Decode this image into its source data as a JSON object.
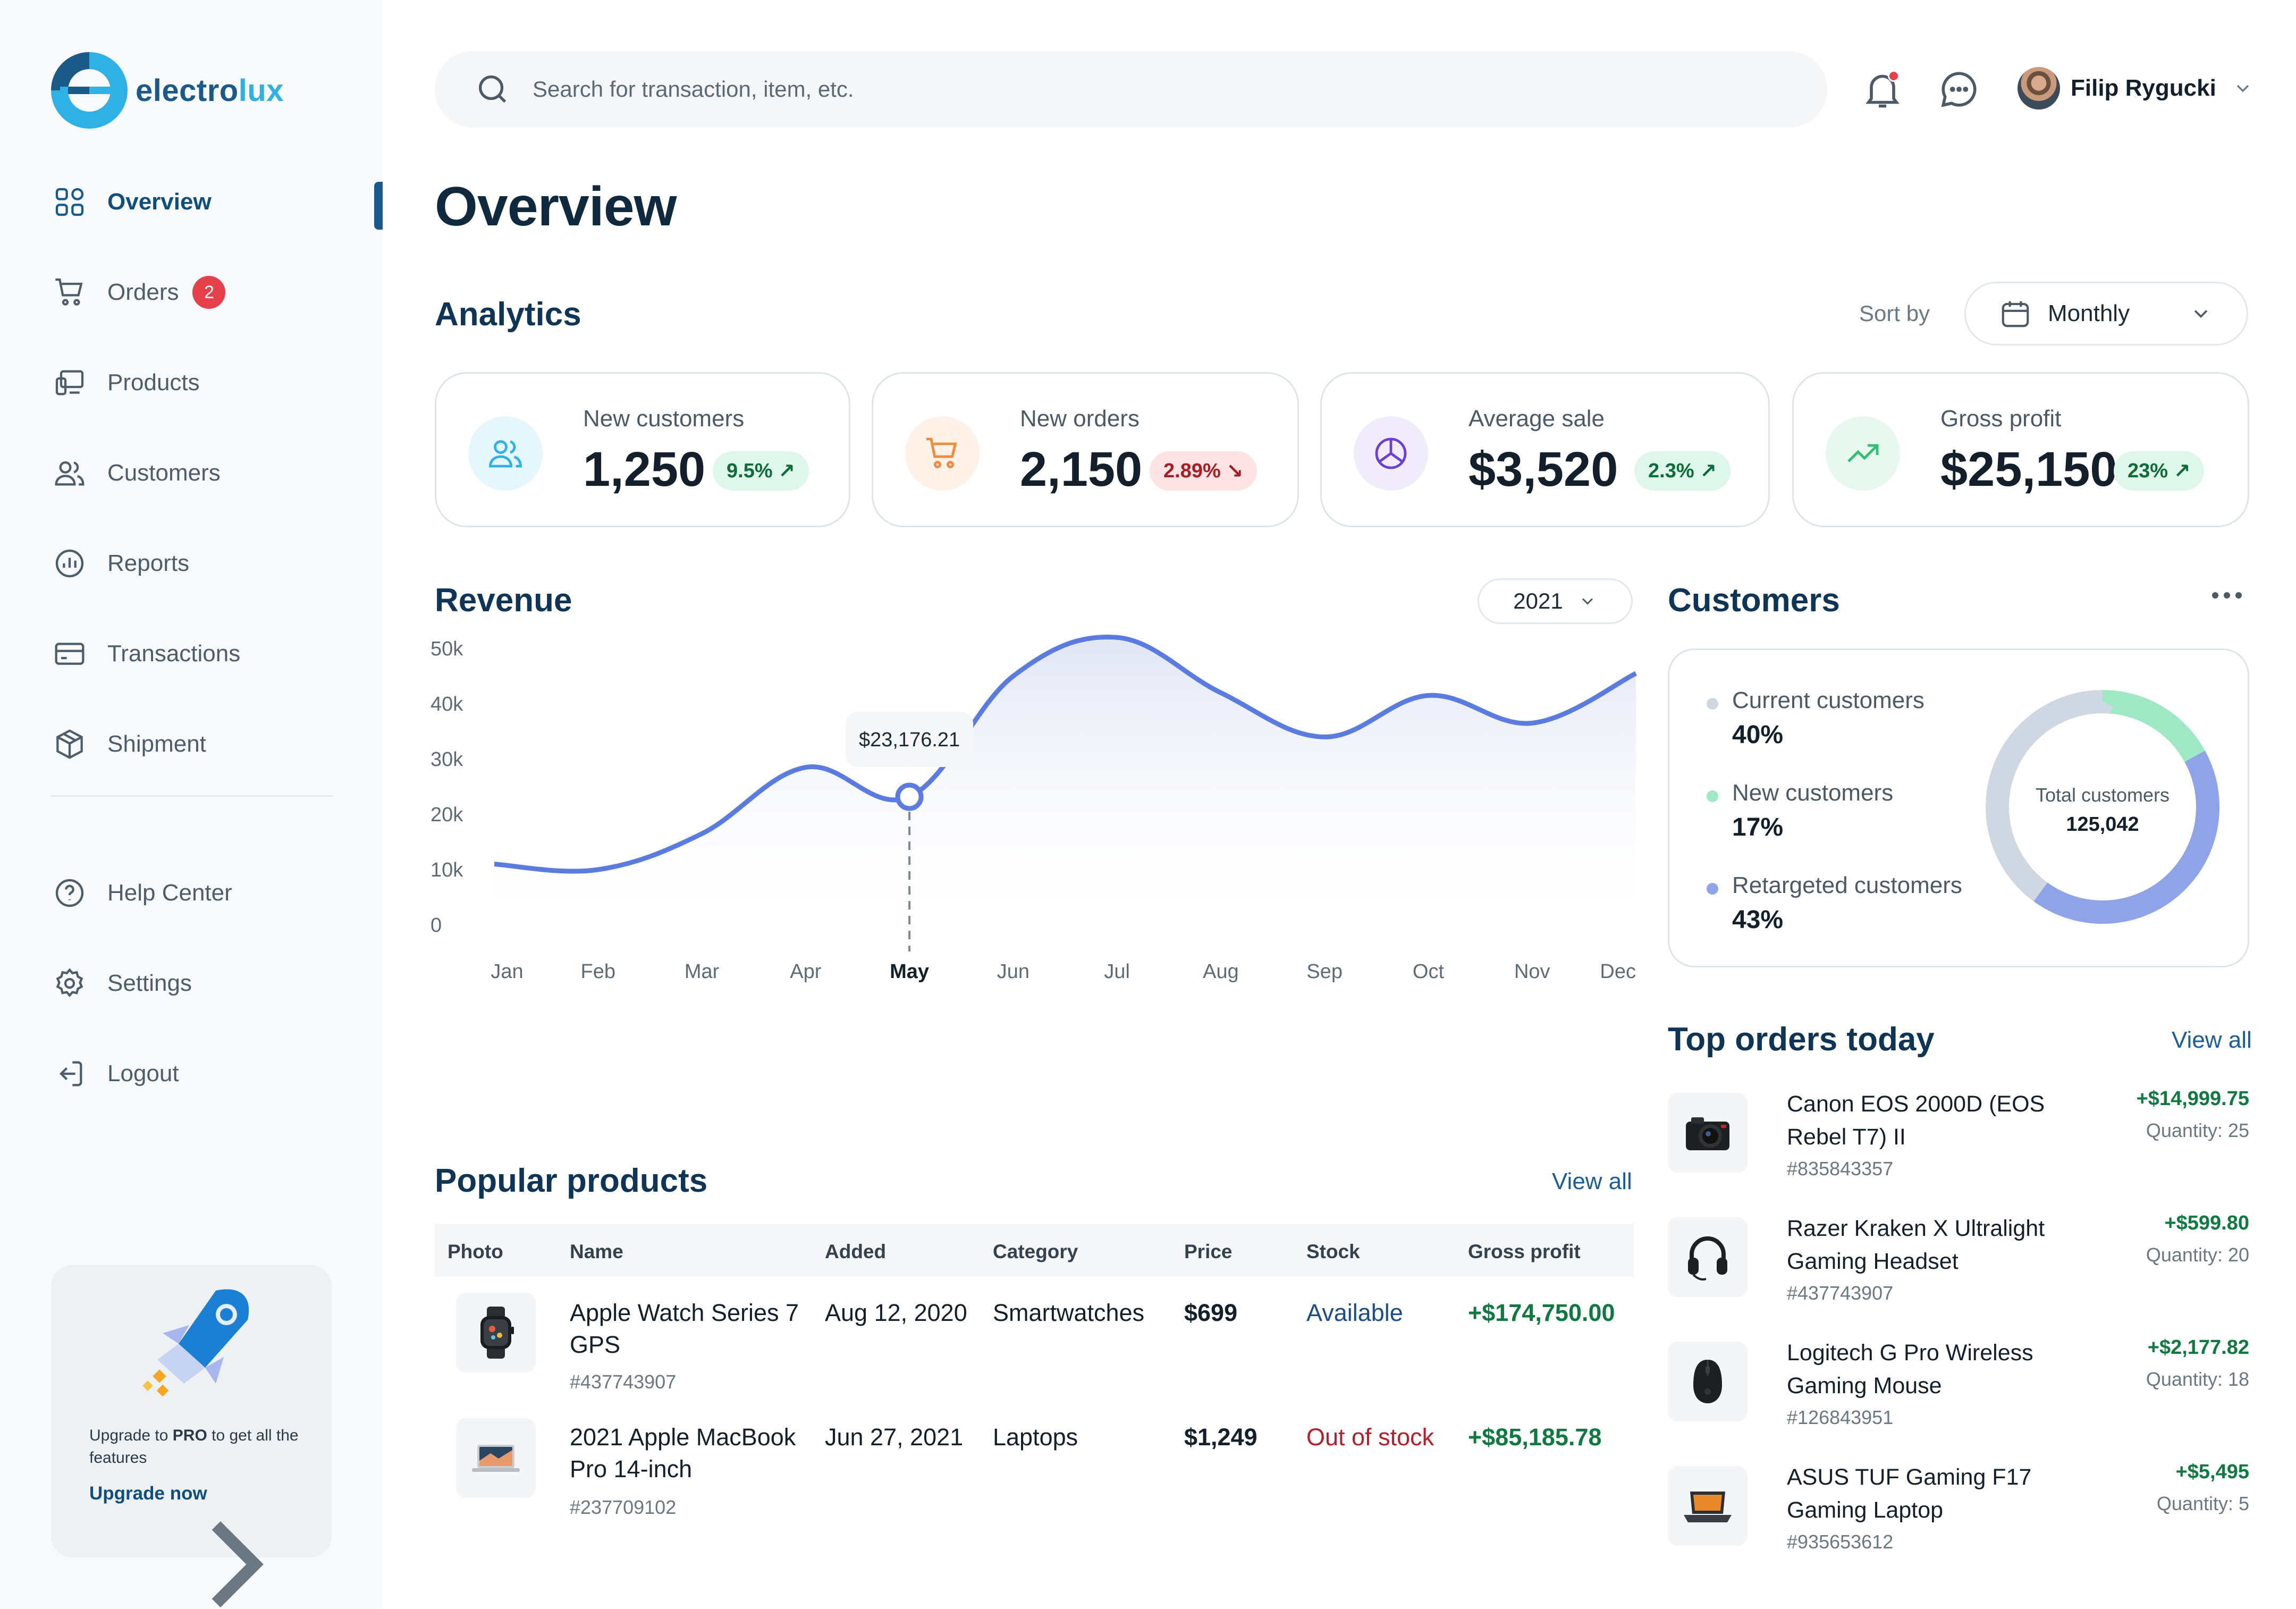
{
  "brand": {
    "name_part1": "electro",
    "name_part2": "lux"
  },
  "sidebar": {
    "items": [
      {
        "label": "Overview",
        "icon": "grid-icon"
      },
      {
        "label": "Orders",
        "icon": "cart-icon",
        "badge": "2"
      },
      {
        "label": "Products",
        "icon": "devices-icon"
      },
      {
        "label": "Customers",
        "icon": "users-icon"
      },
      {
        "label": "Reports",
        "icon": "report-icon"
      },
      {
        "label": "Transactions",
        "icon": "card-icon"
      },
      {
        "label": "Shipment",
        "icon": "box-icon"
      }
    ],
    "secondary": [
      {
        "label": "Help Center",
        "icon": "help-icon"
      },
      {
        "label": "Settings",
        "icon": "gear-icon"
      },
      {
        "label": "Logout",
        "icon": "logout-icon"
      }
    ],
    "upgrade": {
      "text_pre": "Upgrade to ",
      "text_bold": "PRO",
      "text_post": " to get all the features",
      "cta": "Upgrade now"
    }
  },
  "topbar": {
    "search_placeholder": "Search for transaction, item, etc.",
    "user_name": "Filip Rygucki"
  },
  "page": {
    "title": "Overview"
  },
  "analytics": {
    "title": "Analytics",
    "sort_label": "Sort by",
    "sort_value": "Monthly",
    "kpis": [
      {
        "label": "New customers",
        "value": "1,250",
        "change": "9.5%",
        "trend": "up",
        "icon": "users-icon",
        "color": "#2fb1e5"
      },
      {
        "label": "New orders",
        "value": "2,150",
        "change": "2.89%",
        "trend": "down",
        "icon": "cart-icon",
        "color": "#f08a3c"
      },
      {
        "label": "Average sale",
        "value": "$3,520",
        "change": "2.3%",
        "trend": "up",
        "icon": "pie-icon",
        "color": "#6a3fd6"
      },
      {
        "label": "Gross profit",
        "value": "$25,150",
        "change": "23%",
        "trend": "up",
        "icon": "trend-up-icon",
        "color": "#2fbf71"
      }
    ]
  },
  "revenue": {
    "title": "Revenue",
    "year": "2021",
    "tooltip": "$23,176.21"
  },
  "chart_data": {
    "type": "area",
    "title": "Revenue",
    "categories": [
      "Jan",
      "Feb",
      "Mar",
      "Apr",
      "May",
      "Jun",
      "Jul",
      "Aug",
      "Sep",
      "Oct",
      "Nov",
      "Dec"
    ],
    "y_ticks": [
      "50k",
      "40k",
      "30k",
      "20k",
      "10k",
      "0"
    ],
    "ylim": [
      0,
      50000
    ],
    "series": [
      {
        "values": [
          11000,
          10000,
          16500,
          28500,
          23176.21,
          45000,
          52000,
          42000,
          34000,
          41500,
          36500,
          45500
        ]
      }
    ],
    "highlight_index": 4,
    "line_color": "#5a7be0",
    "grid": false
  },
  "customers": {
    "title": "Customers",
    "total_label": "Total customers",
    "total_value": "125,042",
    "segments": [
      {
        "label": "Current customers",
        "percent": "40%",
        "value": 40,
        "color": "#cfd8e2"
      },
      {
        "label": "New customers",
        "percent": "17%",
        "value": 17,
        "color": "#9ee8c6"
      },
      {
        "label": "Retargeted customers",
        "percent": "43%",
        "value": 43,
        "color": "#8fa4e8"
      }
    ]
  },
  "popular": {
    "title": "Popular products",
    "view_all": "View all",
    "columns": [
      "Photo",
      "Name",
      "Added",
      "Category",
      "Price",
      "Stock",
      "Gross profit"
    ],
    "rows": [
      {
        "name": "Apple Watch Series 7 GPS",
        "sku": "#437743907",
        "added": "Aug 12, 2020",
        "category": "Smartwatches",
        "price": "$699",
        "stock": "Available",
        "profit": "+$174,750.00",
        "icon": "watch-icon"
      },
      {
        "name": "2021 Apple MacBook Pro 14-inch",
        "sku": "#237709102",
        "added": "Jun 27, 2021",
        "category": "Laptops",
        "price": "$1,249",
        "stock": "Out of stock",
        "profit": "+$85,185.78",
        "icon": "laptop-icon"
      }
    ]
  },
  "top_orders": {
    "title": "Top orders today",
    "view_all": "View all",
    "items": [
      {
        "name": "Canon EOS 2000D (EOS Rebel T7) II",
        "sku": "#835843357",
        "price": "+$14,999.75",
        "qty": "Quantity: 25",
        "icon": "camera-icon"
      },
      {
        "name": "Razer Kraken X Ultralight Gaming Headset",
        "sku": "#437743907",
        "price": "+$599.80",
        "qty": "Quantity: 20",
        "icon": "headset-icon"
      },
      {
        "name": "Logitech G Pro Wireless Gaming Mouse",
        "sku": "#126843951",
        "price": "+$2,177.82",
        "qty": "Quantity: 18",
        "icon": "mouse-icon"
      },
      {
        "name": "ASUS TUF Gaming F17 Gaming Laptop",
        "sku": "#935653612",
        "price": "+$5,495",
        "qty": "Quantity: 5",
        "icon": "laptop-icon"
      }
    ]
  }
}
